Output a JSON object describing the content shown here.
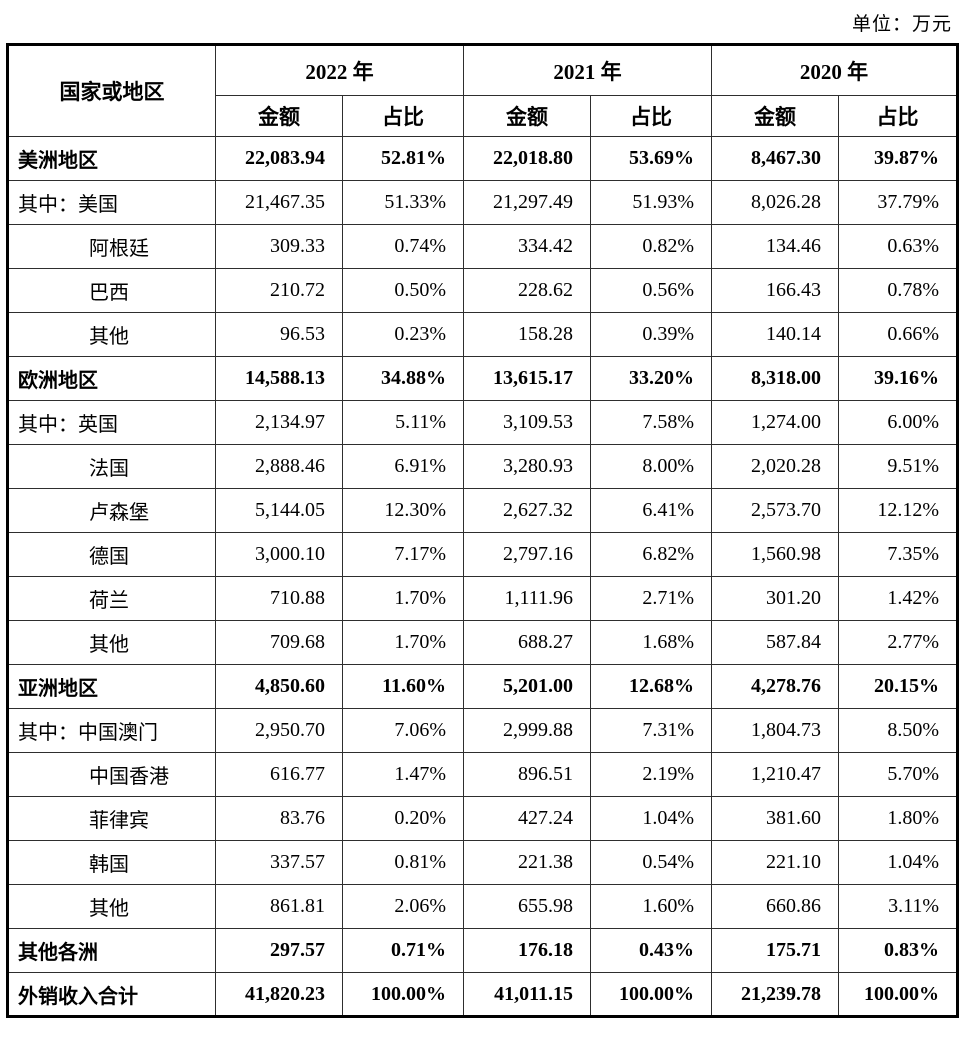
{
  "unit_label": "单位：万元",
  "table": {
    "corner_header": "国家或地区",
    "year_headers": [
      "2022 年",
      "2021 年",
      "2020 年"
    ],
    "sub_headers": [
      "金额",
      "占比"
    ],
    "rows": [
      {
        "label": "美洲地区",
        "bold": true,
        "indent": false,
        "values": [
          "22,083.94",
          "52.81%",
          "22,018.80",
          "53.69%",
          "8,467.30",
          "39.87%"
        ]
      },
      {
        "label": "其中：美国",
        "bold": false,
        "indent": false,
        "values": [
          "21,467.35",
          "51.33%",
          "21,297.49",
          "51.93%",
          "8,026.28",
          "37.79%"
        ]
      },
      {
        "label": "阿根廷",
        "bold": false,
        "indent": true,
        "values": [
          "309.33",
          "0.74%",
          "334.42",
          "0.82%",
          "134.46",
          "0.63%"
        ]
      },
      {
        "label": "巴西",
        "bold": false,
        "indent": true,
        "values": [
          "210.72",
          "0.50%",
          "228.62",
          "0.56%",
          "166.43",
          "0.78%"
        ]
      },
      {
        "label": "其他",
        "bold": false,
        "indent": true,
        "values": [
          "96.53",
          "0.23%",
          "158.28",
          "0.39%",
          "140.14",
          "0.66%"
        ]
      },
      {
        "label": "欧洲地区",
        "bold": true,
        "indent": false,
        "values": [
          "14,588.13",
          "34.88%",
          "13,615.17",
          "33.20%",
          "8,318.00",
          "39.16%"
        ]
      },
      {
        "label": "其中：英国",
        "bold": false,
        "indent": false,
        "values": [
          "2,134.97",
          "5.11%",
          "3,109.53",
          "7.58%",
          "1,274.00",
          "6.00%"
        ]
      },
      {
        "label": "法国",
        "bold": false,
        "indent": true,
        "values": [
          "2,888.46",
          "6.91%",
          "3,280.93",
          "8.00%",
          "2,020.28",
          "9.51%"
        ]
      },
      {
        "label": "卢森堡",
        "bold": false,
        "indent": true,
        "values": [
          "5,144.05",
          "12.30%",
          "2,627.32",
          "6.41%",
          "2,573.70",
          "12.12%"
        ]
      },
      {
        "label": "德国",
        "bold": false,
        "indent": true,
        "values": [
          "3,000.10",
          "7.17%",
          "2,797.16",
          "6.82%",
          "1,560.98",
          "7.35%"
        ]
      },
      {
        "label": "荷兰",
        "bold": false,
        "indent": true,
        "values": [
          "710.88",
          "1.70%",
          "1,111.96",
          "2.71%",
          "301.20",
          "1.42%"
        ]
      },
      {
        "label": "其他",
        "bold": false,
        "indent": true,
        "values": [
          "709.68",
          "1.70%",
          "688.27",
          "1.68%",
          "587.84",
          "2.77%"
        ]
      },
      {
        "label": "亚洲地区",
        "bold": true,
        "indent": false,
        "values": [
          "4,850.60",
          "11.60%",
          "5,201.00",
          "12.68%",
          "4,278.76",
          "20.15%"
        ]
      },
      {
        "label": "其中：中国澳门",
        "bold": false,
        "indent": false,
        "values": [
          "2,950.70",
          "7.06%",
          "2,999.88",
          "7.31%",
          "1,804.73",
          "8.50%"
        ]
      },
      {
        "label": "中国香港",
        "bold": false,
        "indent": true,
        "values": [
          "616.77",
          "1.47%",
          "896.51",
          "2.19%",
          "1,210.47",
          "5.70%"
        ]
      },
      {
        "label": "菲律宾",
        "bold": false,
        "indent": true,
        "values": [
          "83.76",
          "0.20%",
          "427.24",
          "1.04%",
          "381.60",
          "1.80%"
        ]
      },
      {
        "label": "韩国",
        "bold": false,
        "indent": true,
        "values": [
          "337.57",
          "0.81%",
          "221.38",
          "0.54%",
          "221.10",
          "1.04%"
        ]
      },
      {
        "label": "其他",
        "bold": false,
        "indent": true,
        "values": [
          "861.81",
          "2.06%",
          "655.98",
          "1.60%",
          "660.86",
          "3.11%"
        ]
      },
      {
        "label": "其他各洲",
        "bold": true,
        "indent": false,
        "values": [
          "297.57",
          "0.71%",
          "176.18",
          "0.43%",
          "175.71",
          "0.83%"
        ]
      },
      {
        "label": "外销收入合计",
        "bold": true,
        "indent": false,
        "values": [
          "41,820.23",
          "100.00%",
          "41,011.15",
          "100.00%",
          "21,239.78",
          "100.00%"
        ]
      }
    ]
  }
}
